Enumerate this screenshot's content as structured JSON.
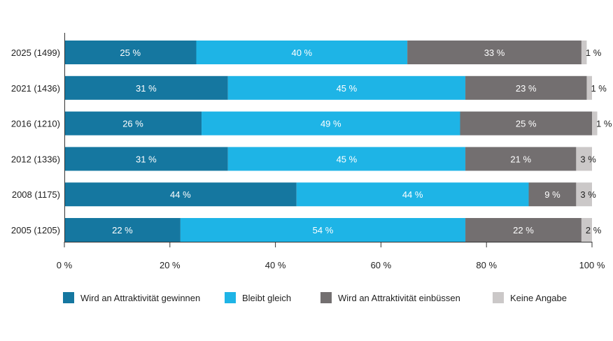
{
  "chart_data": {
    "type": "bar",
    "orientation": "horizontal",
    "stacked": true,
    "categories": [
      "2025 (1499)",
      "2021 (1436)",
      "2016 (1210)",
      "2012 (1336)",
      "2008 (1175)",
      "2005 (1205)"
    ],
    "series": [
      {
        "name": "Wird an Attraktivität gewinnen",
        "color": "#1577a0",
        "values": [
          25,
          31,
          26,
          31,
          44,
          22
        ]
      },
      {
        "name": "Bleibt gleich",
        "color": "#1eb4e6",
        "values": [
          40,
          45,
          49,
          45,
          44,
          54
        ]
      },
      {
        "name": "Wird an Attraktivität einbüssen",
        "color": "#736f70",
        "values": [
          33,
          23,
          25,
          21,
          9,
          22
        ]
      },
      {
        "name": "Keine Angabe",
        "color": "#cbc8c8",
        "values": [
          1,
          1,
          1,
          3,
          3,
          2
        ]
      }
    ],
    "data_labels": [
      [
        "25 %",
        "40 %",
        "33 %",
        "1 %"
      ],
      [
        "31 %",
        "45 %",
        "23 %",
        "1 %"
      ],
      [
        "26 %",
        "49 %",
        "25 %",
        "1 %"
      ],
      [
        "31 %",
        "45 %",
        "21 %",
        "3 %"
      ],
      [
        "44 %",
        "44 %",
        "9 %",
        "3 %"
      ],
      [
        "22 %",
        "54 %",
        "22 %",
        "2 %"
      ]
    ],
    "x_ticks": [
      "0 %",
      "20 %",
      "40 %",
      "60 %",
      "80 %",
      "100 %"
    ],
    "xlim": [
      0,
      100
    ],
    "grid": false,
    "legend_position": "bottom"
  }
}
